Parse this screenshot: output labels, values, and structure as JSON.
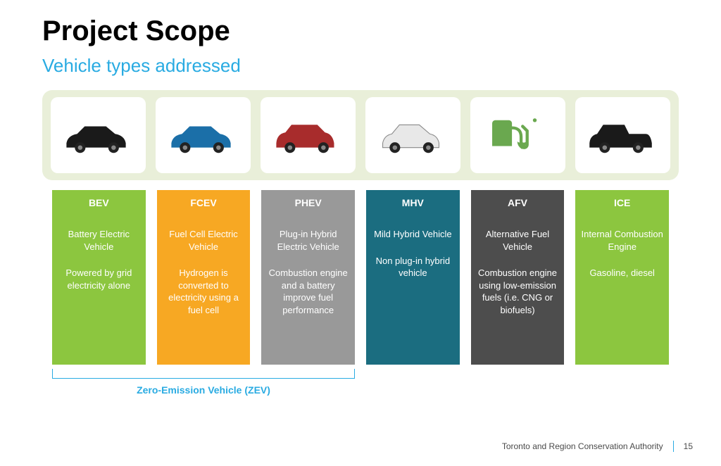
{
  "title": "Project Scope",
  "subtitle": "Vehicle types addressed",
  "colors": {
    "accent_blue": "#29abe2",
    "strip_bg": "#e9efd9",
    "footer_divider": "#29abe2"
  },
  "vehicles": [
    {
      "abbr": "BEV",
      "name": "Battery Electric Vehicle",
      "desc": "Powered by grid electricity alone",
      "color": "#8cc63f",
      "icon_type": "sedan",
      "icon_color": "#1a1a1a"
    },
    {
      "abbr": "FCEV",
      "name": "Fuel Cell Electric Vehicle",
      "desc": "Hydrogen is converted to electricity using a fuel cell",
      "color": "#f7a823",
      "icon_type": "sedan",
      "icon_color": "#1b6fa8"
    },
    {
      "abbr": "PHEV",
      "name": "Plug-in Hybrid Electric Vehicle",
      "desc": "Combustion engine and a battery improve fuel performance",
      "color": "#999999",
      "icon_type": "suv",
      "icon_color": "#a82c2c"
    },
    {
      "abbr": "MHV",
      "name": "Mild Hybrid Vehicle",
      "desc": "Non plug-in hybrid vehicle",
      "color": "#1b6d80",
      "icon_type": "hatchback",
      "icon_color": "#e8e8e8"
    },
    {
      "abbr": "AFV",
      "name": "Alternative Fuel Vehicle",
      "desc": "Combustion engine using low-emission fuels (i.e. CNG or biofuels)",
      "color": "#4d4d4d",
      "icon_type": "pump",
      "icon_color": "#6aa84f"
    },
    {
      "abbr": "ICE",
      "name": "Internal Combustion Engine",
      "desc": "Gasoline, diesel",
      "color": "#8cc63f",
      "icon_type": "truck",
      "icon_color": "#1a1a1a"
    }
  ],
  "zev_label": "Zero-Emission Vehicle (ZEV)",
  "footer_org": "Toronto and Region Conservation Authority",
  "page_number": "15"
}
